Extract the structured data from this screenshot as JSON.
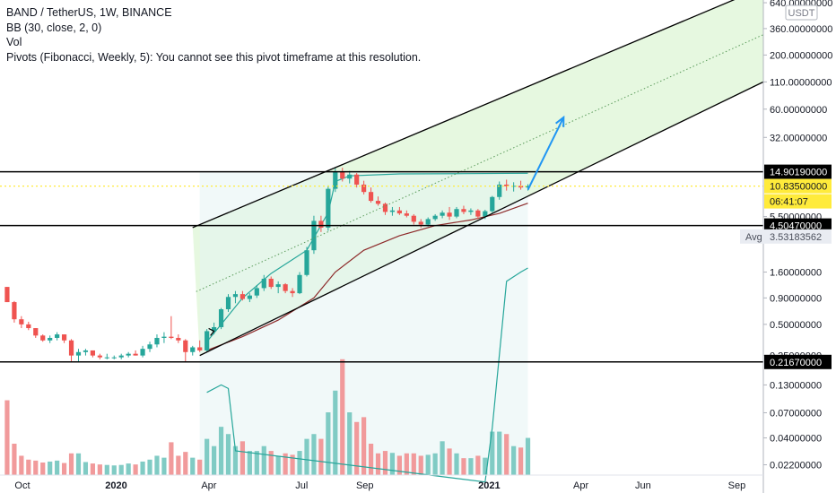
{
  "header": {
    "symbol_line": "BAND / TetherUS, 1W, BINANCE",
    "indicators": [
      "BB (30, close, 2, 0)",
      "Vol",
      "Pivots (Fibonacci, Weekly, 5): You cannot see this pivot timeframe at this resolution."
    ]
  },
  "currency_badge": "USDT",
  "chart_data": {
    "type": "candlestick",
    "yscale": "log",
    "ylim": [
      0.0175,
      680
    ],
    "xlim": [
      "2019-09-09",
      "2021-09-27"
    ],
    "x_tick_labels": [
      {
        "label": "Oct",
        "date": "2019-10-01"
      },
      {
        "label": "2020",
        "date": "2020-01-01",
        "bold": true
      },
      {
        "label": "Apr",
        "date": "2020-04-01"
      },
      {
        "label": "Jul",
        "date": "2020-07-01"
      },
      {
        "label": "Sep",
        "date": "2020-09-01"
      },
      {
        "label": "2021",
        "date": "2021-01-01",
        "bold": true
      },
      {
        "label": "Apr",
        "date": "2021-04-01"
      },
      {
        "label": "Jun",
        "date": "2021-06-01"
      },
      {
        "label": "Sep",
        "date": "2021-09-01"
      }
    ],
    "y_tick_labels": [
      {
        "label": "640.00000000",
        "value": 640
      },
      {
        "label": "360.00000000",
        "value": 360
      },
      {
        "label": "200.00000000",
        "value": 200
      },
      {
        "label": "110.00000000",
        "value": 110
      },
      {
        "label": "60.00000000",
        "value": 60
      },
      {
        "label": "32.00000000",
        "value": 32
      },
      {
        "label": "5.50000000",
        "value": 5.5
      },
      {
        "label": "1.60000000",
        "value": 1.6
      },
      {
        "label": "0.90000000",
        "value": 0.9
      },
      {
        "label": "0.50000000",
        "value": 0.5
      },
      {
        "label": "0.25000000",
        "value": 0.25
      },
      {
        "label": "0.13000000",
        "value": 0.13
      },
      {
        "label": "0.07000000",
        "value": 0.07
      },
      {
        "label": "0.04000000",
        "value": 0.04
      },
      {
        "label": "0.02200000",
        "value": 0.022
      }
    ],
    "horizontal_levels": [
      {
        "label": "14.90190000",
        "value": 14.9019
      },
      {
        "label": "4.50470000",
        "value": 4.5047
      },
      {
        "label": "0.21670000",
        "value": 0.2167
      }
    ],
    "last_price": {
      "label": "10.83500000",
      "value": 10.835,
      "countdown": "06:41:07",
      "color": "#ffeb3b"
    },
    "avg_price": {
      "label": "Avg",
      "value_label": "3.53183562",
      "value": 3.53183562
    },
    "colors": {
      "up": "#26a69a",
      "down": "#ef5350",
      "up_vol": "#80cbc4",
      "down_vol": "#f19a9b",
      "bb_line": "#26a69a",
      "basis_line": "#8d2a2a",
      "arrow": "#2196f3",
      "channel_fill": "#d8f5cf"
    },
    "candles": [
      {
        "d": "2019-09-16",
        "o": 1.15,
        "h": 1.15,
        "l": 0.82,
        "c": 0.82,
        "v": 0.155
      },
      {
        "d": "2019-09-23",
        "o": 0.82,
        "h": 0.84,
        "l": 0.52,
        "c": 0.56,
        "v": 0.065
      },
      {
        "d": "2019-09-30",
        "o": 0.56,
        "h": 0.6,
        "l": 0.46,
        "c": 0.5,
        "v": 0.04
      },
      {
        "d": "2019-10-07",
        "o": 0.5,
        "h": 0.53,
        "l": 0.44,
        "c": 0.46,
        "v": 0.032
      },
      {
        "d": "2019-10-14",
        "o": 0.46,
        "h": 0.46,
        "l": 0.37,
        "c": 0.39,
        "v": 0.03
      },
      {
        "d": "2019-10-21",
        "o": 0.39,
        "h": 0.4,
        "l": 0.34,
        "c": 0.35,
        "v": 0.026
      },
      {
        "d": "2019-10-28",
        "o": 0.35,
        "h": 0.39,
        "l": 0.33,
        "c": 0.37,
        "v": 0.028
      },
      {
        "d": "2019-11-04",
        "o": 0.37,
        "h": 0.42,
        "l": 0.35,
        "c": 0.4,
        "v": 0.03
      },
      {
        "d": "2019-11-11",
        "o": 0.4,
        "h": 0.4,
        "l": 0.33,
        "c": 0.35,
        "v": 0.025
      },
      {
        "d": "2019-11-18",
        "o": 0.35,
        "h": 0.36,
        "l": 0.22,
        "c": 0.25,
        "v": 0.045
      },
      {
        "d": "2019-11-25",
        "o": 0.25,
        "h": 0.29,
        "l": 0.22,
        "c": 0.27,
        "v": 0.045
      },
      {
        "d": "2019-12-02",
        "o": 0.27,
        "h": 0.29,
        "l": 0.25,
        "c": 0.28,
        "v": 0.027
      },
      {
        "d": "2019-12-09",
        "o": 0.28,
        "h": 0.28,
        "l": 0.24,
        "c": 0.25,
        "v": 0.024
      },
      {
        "d": "2019-12-16",
        "o": 0.25,
        "h": 0.26,
        "l": 0.23,
        "c": 0.24,
        "v": 0.022
      },
      {
        "d": "2019-12-23",
        "o": 0.24,
        "h": 0.26,
        "l": 0.23,
        "c": 0.24,
        "v": 0.021
      },
      {
        "d": "2019-12-30",
        "o": 0.24,
        "h": 0.25,
        "l": 0.23,
        "c": 0.24,
        "v": 0.02
      },
      {
        "d": "2020-01-06",
        "o": 0.24,
        "h": 0.26,
        "l": 0.23,
        "c": 0.25,
        "v": 0.021
      },
      {
        "d": "2020-01-13",
        "o": 0.25,
        "h": 0.27,
        "l": 0.24,
        "c": 0.26,
        "v": 0.024
      },
      {
        "d": "2020-01-20",
        "o": 0.26,
        "h": 0.28,
        "l": 0.25,
        "c": 0.25,
        "v": 0.022
      },
      {
        "d": "2020-01-27",
        "o": 0.25,
        "h": 0.31,
        "l": 0.24,
        "c": 0.29,
        "v": 0.028
      },
      {
        "d": "2020-02-03",
        "o": 0.29,
        "h": 0.34,
        "l": 0.27,
        "c": 0.32,
        "v": 0.032
      },
      {
        "d": "2020-02-10",
        "o": 0.32,
        "h": 0.4,
        "l": 0.3,
        "c": 0.37,
        "v": 0.04
      },
      {
        "d": "2020-02-17",
        "o": 0.37,
        "h": 0.42,
        "l": 0.33,
        "c": 0.38,
        "v": 0.036
      },
      {
        "d": "2020-02-24",
        "o": 0.38,
        "h": 0.6,
        "l": 0.36,
        "c": 0.37,
        "v": 0.068
      },
      {
        "d": "2020-03-02",
        "o": 0.37,
        "h": 0.4,
        "l": 0.33,
        "c": 0.35,
        "v": 0.04
      },
      {
        "d": "2020-03-09",
        "o": 0.35,
        "h": 0.36,
        "l": 0.22,
        "c": 0.27,
        "v": 0.048
      },
      {
        "d": "2020-03-16",
        "o": 0.27,
        "h": 0.31,
        "l": 0.25,
        "c": 0.3,
        "v": 0.036
      },
      {
        "d": "2020-03-23",
        "o": 0.3,
        "h": 0.35,
        "l": 0.27,
        "c": 0.28,
        "v": 0.032
      },
      {
        "d": "2020-03-30",
        "o": 0.28,
        "h": 0.45,
        "l": 0.27,
        "c": 0.43,
        "v": 0.075
      },
      {
        "d": "2020-04-06",
        "o": 0.43,
        "h": 0.52,
        "l": 0.4,
        "c": 0.47,
        "v": 0.06
      },
      {
        "d": "2020-04-13",
        "o": 0.47,
        "h": 0.72,
        "l": 0.45,
        "c": 0.7,
        "v": 0.1
      },
      {
        "d": "2020-04-20",
        "o": 0.7,
        "h": 0.98,
        "l": 0.66,
        "c": 0.92,
        "v": 0.085
      },
      {
        "d": "2020-04-27",
        "o": 0.92,
        "h": 1.05,
        "l": 0.8,
        "c": 0.98,
        "v": 0.06
      },
      {
        "d": "2020-05-04",
        "o": 0.98,
        "h": 1.05,
        "l": 0.85,
        "c": 0.88,
        "v": 0.07
      },
      {
        "d": "2020-05-11",
        "o": 0.88,
        "h": 1.0,
        "l": 0.82,
        "c": 0.95,
        "v": 0.05
      },
      {
        "d": "2020-05-18",
        "o": 0.95,
        "h": 1.2,
        "l": 0.9,
        "c": 1.12,
        "v": 0.05
      },
      {
        "d": "2020-05-25",
        "o": 1.12,
        "h": 1.5,
        "l": 1.05,
        "c": 1.38,
        "v": 0.06
      },
      {
        "d": "2020-06-01",
        "o": 1.38,
        "h": 1.45,
        "l": 1.1,
        "c": 1.15,
        "v": 0.05
      },
      {
        "d": "2020-06-08",
        "o": 1.15,
        "h": 1.3,
        "l": 1.0,
        "c": 1.22,
        "v": 0.04
      },
      {
        "d": "2020-06-15",
        "o": 1.22,
        "h": 1.25,
        "l": 1.0,
        "c": 1.05,
        "v": 0.045
      },
      {
        "d": "2020-06-22",
        "o": 1.05,
        "h": 1.12,
        "l": 0.92,
        "c": 1.0,
        "v": 0.042
      },
      {
        "d": "2020-06-29",
        "o": 1.0,
        "h": 1.6,
        "l": 0.98,
        "c": 1.5,
        "v": 0.05
      },
      {
        "d": "2020-07-06",
        "o": 1.5,
        "h": 2.8,
        "l": 1.45,
        "c": 2.6,
        "v": 0.075
      },
      {
        "d": "2020-07-13",
        "o": 2.6,
        "h": 5.6,
        "l": 2.4,
        "c": 5.0,
        "v": 0.085
      },
      {
        "d": "2020-07-20",
        "o": 5.0,
        "h": 5.6,
        "l": 3.9,
        "c": 4.3,
        "v": 0.075
      },
      {
        "d": "2020-07-27",
        "o": 4.3,
        "h": 11.0,
        "l": 4.0,
        "c": 10.2,
        "v": 0.13
      },
      {
        "d": "2020-08-03",
        "o": 10.2,
        "h": 16.5,
        "l": 9.5,
        "c": 15.0,
        "v": 0.175
      },
      {
        "d": "2020-08-10",
        "o": 15.0,
        "h": 16.3,
        "l": 12.0,
        "c": 12.8,
        "v": 0.24
      },
      {
        "d": "2020-08-17",
        "o": 12.8,
        "h": 15.2,
        "l": 11.5,
        "c": 14.0,
        "v": 0.13
      },
      {
        "d": "2020-08-24",
        "o": 14.0,
        "h": 14.5,
        "l": 10.5,
        "c": 11.2,
        "v": 0.11
      },
      {
        "d": "2020-08-31",
        "o": 11.2,
        "h": 12.2,
        "l": 9.0,
        "c": 9.5,
        "v": 0.12
      },
      {
        "d": "2020-09-07",
        "o": 9.5,
        "h": 10.5,
        "l": 7.5,
        "c": 7.8,
        "v": 0.065
      },
      {
        "d": "2020-09-14",
        "o": 7.8,
        "h": 8.6,
        "l": 7.0,
        "c": 7.3,
        "v": 0.045
      },
      {
        "d": "2020-09-21",
        "o": 7.3,
        "h": 7.5,
        "l": 5.7,
        "c": 6.1,
        "v": 0.05
      },
      {
        "d": "2020-09-28",
        "o": 6.1,
        "h": 6.8,
        "l": 5.6,
        "c": 6.3,
        "v": 0.046
      },
      {
        "d": "2020-10-05",
        "o": 6.3,
        "h": 6.8,
        "l": 5.7,
        "c": 5.9,
        "v": 0.04
      },
      {
        "d": "2020-10-12",
        "o": 5.9,
        "h": 6.3,
        "l": 5.4,
        "c": 5.6,
        "v": 0.045
      },
      {
        "d": "2020-10-19",
        "o": 5.6,
        "h": 5.8,
        "l": 4.6,
        "c": 4.9,
        "v": 0.045
      },
      {
        "d": "2020-10-26",
        "o": 4.9,
        "h": 5.2,
        "l": 4.3,
        "c": 4.6,
        "v": 0.04
      },
      {
        "d": "2020-11-02",
        "o": 4.6,
        "h": 5.4,
        "l": 4.4,
        "c": 5.2,
        "v": 0.042
      },
      {
        "d": "2020-11-09",
        "o": 5.2,
        "h": 5.8,
        "l": 5.0,
        "c": 5.6,
        "v": 0.045
      },
      {
        "d": "2020-11-16",
        "o": 5.6,
        "h": 6.3,
        "l": 5.3,
        "c": 6.0,
        "v": 0.07
      },
      {
        "d": "2020-11-23",
        "o": 6.0,
        "h": 6.8,
        "l": 5.1,
        "c": 5.5,
        "v": 0.055
      },
      {
        "d": "2020-11-30",
        "o": 5.5,
        "h": 6.8,
        "l": 5.3,
        "c": 6.5,
        "v": 0.045
      },
      {
        "d": "2020-12-07",
        "o": 6.5,
        "h": 7.0,
        "l": 5.8,
        "c": 6.1,
        "v": 0.035
      },
      {
        "d": "2020-12-14",
        "o": 6.1,
        "h": 6.6,
        "l": 5.7,
        "c": 6.3,
        "v": 0.035
      },
      {
        "d": "2020-12-21",
        "o": 6.3,
        "h": 6.5,
        "l": 5.2,
        "c": 5.5,
        "v": 0.04
      },
      {
        "d": "2020-12-28",
        "o": 5.5,
        "h": 6.4,
        "l": 5.2,
        "c": 6.2,
        "v": 0.036
      },
      {
        "d": "2021-01-04",
        "o": 6.2,
        "h": 8.7,
        "l": 6.0,
        "c": 8.5,
        "v": 0.09
      },
      {
        "d": "2021-01-11",
        "o": 8.5,
        "h": 12.0,
        "l": 8.0,
        "c": 11.2,
        "v": 0.09
      },
      {
        "d": "2021-01-18",
        "o": 11.2,
        "h": 12.5,
        "l": 9.8,
        "c": 10.8,
        "v": 0.085
      },
      {
        "d": "2021-01-25",
        "o": 10.8,
        "h": 11.8,
        "l": 9.6,
        "c": 10.9,
        "v": 0.06
      },
      {
        "d": "2021-02-01",
        "o": 10.9,
        "h": 12.2,
        "l": 10.0,
        "c": 10.5,
        "v": 0.057
      },
      {
        "d": "2021-02-08",
        "o": 10.5,
        "h": 11.3,
        "l": 9.8,
        "c": 10.835,
        "v": 0.077
      }
    ]
  }
}
